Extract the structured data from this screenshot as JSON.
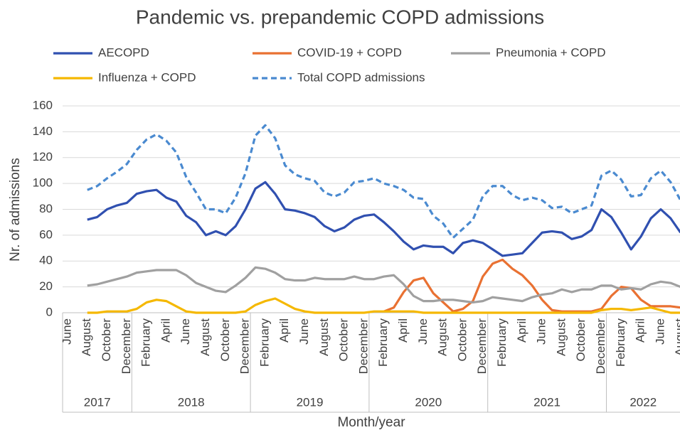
{
  "chart_data": {
    "type": "line",
    "title": "Pandemic vs. prepandemic COPD admissions",
    "y_label": "Nr. of admissions",
    "x_label": "Month/year",
    "categories": [
      "June",
      null,
      "August",
      null,
      "October",
      null,
      "December",
      null,
      "February",
      null,
      "April",
      null,
      "June",
      null,
      "August",
      null,
      "October",
      null,
      "December",
      null,
      "February",
      null,
      "April",
      null,
      "June",
      null,
      "August",
      null,
      "October",
      null,
      "December",
      null,
      "February",
      null,
      "April",
      null,
      "June",
      null,
      "August",
      null,
      "October",
      null,
      "December",
      null,
      "February",
      null,
      "April",
      null,
      "June",
      null,
      "August",
      null,
      "October",
      null,
      "December",
      null,
      "February",
      null,
      "April",
      null,
      "June",
      null,
      "August"
    ],
    "year_groups": [
      {
        "label": "2017",
        "months": 7
      },
      {
        "label": "2018",
        "months": 12
      },
      {
        "label": "2019",
        "months": 12
      },
      {
        "label": "2020",
        "months": 12
      },
      {
        "label": "2021",
        "months": 12
      },
      {
        "label": "2022",
        "months": 8
      }
    ],
    "ylim": [
      0,
      160
    ],
    "yticks": [
      0,
      20,
      40,
      60,
      80,
      100,
      120,
      140,
      160
    ],
    "grid": true,
    "series": [
      {
        "name": "AECOPD",
        "color": "#3050b0",
        "dashed": false,
        "values": [
          null,
          null,
          72,
          74,
          80,
          83,
          85,
          92,
          94,
          95,
          89,
          86,
          75,
          70,
          60,
          63,
          60,
          67,
          80,
          96,
          101,
          92,
          80,
          79,
          77,
          74,
          67,
          63,
          66,
          72,
          75,
          76,
          70,
          63,
          55,
          49,
          52,
          51,
          51,
          46,
          54,
          56,
          54,
          49,
          44,
          45,
          46,
          54,
          62,
          63,
          62,
          57,
          59,
          64,
          80,
          74,
          62,
          49,
          59,
          73,
          80,
          73,
          62
        ]
      },
      {
        "name": "COVID-19 + COPD",
        "color": "#e97132",
        "dashed": false,
        "values": [
          null,
          null,
          null,
          null,
          null,
          null,
          null,
          null,
          null,
          null,
          null,
          null,
          null,
          null,
          null,
          null,
          null,
          null,
          null,
          null,
          null,
          null,
          null,
          null,
          null,
          null,
          null,
          null,
          null,
          null,
          null,
          null,
          1,
          4,
          16,
          25,
          27,
          15,
          8,
          1,
          3,
          9,
          28,
          38,
          41,
          34,
          29,
          21,
          10,
          2,
          1,
          1,
          1,
          1,
          3,
          13,
          20,
          19,
          10,
          5,
          5,
          5,
          4
        ]
      },
      {
        "name": "Pneumonia + COPD",
        "color": "#a0a0a0",
        "dashed": false,
        "values": [
          null,
          null,
          21,
          22,
          24,
          26,
          28,
          31,
          32,
          33,
          33,
          33,
          29,
          23,
          20,
          17,
          16,
          21,
          27,
          35,
          34,
          31,
          26,
          25,
          25,
          27,
          26,
          26,
          26,
          28,
          26,
          26,
          28,
          29,
          22,
          13,
          9,
          9,
          10,
          10,
          9,
          8,
          9,
          12,
          11,
          10,
          9,
          12,
          14,
          15,
          18,
          16,
          18,
          18,
          21,
          21,
          18,
          19,
          18,
          22,
          24,
          23,
          20
        ]
      },
      {
        "name": "Influenza + COPD",
        "color": "#f5b800",
        "dashed": false,
        "values": [
          null,
          null,
          0,
          0,
          1,
          1,
          1,
          3,
          8,
          10,
          9,
          5,
          1,
          0,
          0,
          0,
          0,
          0,
          1,
          6,
          9,
          11,
          7,
          3,
          1,
          0,
          0,
          0,
          0,
          0,
          0,
          1,
          1,
          1,
          1,
          1,
          0,
          0,
          0,
          0,
          0,
          0,
          0,
          0,
          0,
          0,
          0,
          0,
          0,
          0,
          0,
          0,
          0,
          0,
          2,
          3,
          3,
          2,
          3,
          4,
          2,
          0,
          0
        ]
      },
      {
        "name": "Total COPD admissions",
        "color": "#4a8ad0",
        "dashed": true,
        "values": [
          null,
          null,
          95,
          98,
          104,
          109,
          115,
          126,
          134,
          138,
          133,
          124,
          105,
          93,
          80,
          80,
          77,
          89,
          108,
          137,
          145,
          135,
          114,
          107,
          104,
          102,
          93,
          90,
          93,
          101,
          102,
          104,
          100,
          98,
          95,
          89,
          88,
          75,
          69,
          58,
          65,
          72,
          90,
          98,
          98,
          91,
          87,
          89,
          87,
          81,
          82,
          77,
          80,
          83,
          106,
          110,
          103,
          90,
          91,
          104,
          110,
          101,
          87
        ]
      }
    ]
  }
}
